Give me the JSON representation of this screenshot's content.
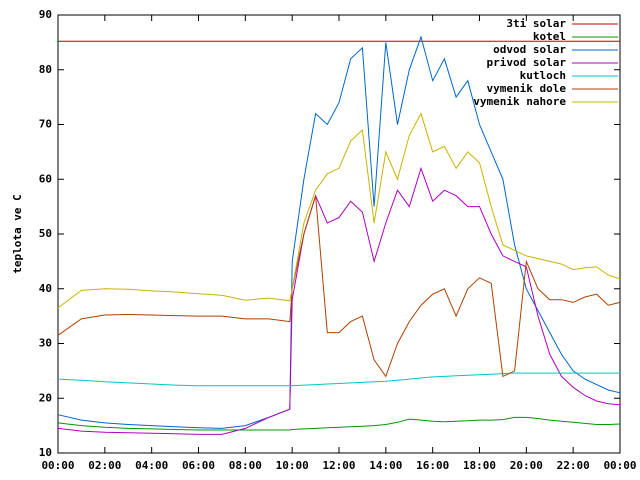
{
  "chart_data": {
    "type": "line",
    "y_label": "teplota ve C",
    "x": [
      0,
      1,
      2,
      3,
      4,
      5,
      6,
      7,
      8,
      9,
      9.9,
      10,
      10.5,
      11,
      11.5,
      12,
      12.5,
      13,
      13.5,
      14,
      14.5,
      15,
      15.5,
      16,
      16.5,
      17,
      17.5,
      18,
      18.5,
      19,
      19.5,
      20,
      20.5,
      21,
      21.5,
      22,
      22.5,
      23,
      23.5,
      24
    ],
    "xlim": [
      0,
      24
    ],
    "xticks": [
      {
        "value": 0,
        "label": "00:00"
      },
      {
        "value": 2,
        "label": "02:00"
      },
      {
        "value": 4,
        "label": "04:00"
      },
      {
        "value": 6,
        "label": "06:00"
      },
      {
        "value": 8,
        "label": "08:00"
      },
      {
        "value": 10,
        "label": "10:00"
      },
      {
        "value": 12,
        "label": "12:00"
      },
      {
        "value": 14,
        "label": "14:00"
      },
      {
        "value": 16,
        "label": "16:00"
      },
      {
        "value": 18,
        "label": "18:00"
      },
      {
        "value": 20,
        "label": "20:00"
      },
      {
        "value": 22,
        "label": "22:00"
      },
      {
        "value": 24,
        "label": "00:00"
      }
    ],
    "ylim": [
      10,
      90
    ],
    "yticks": [
      10,
      20,
      30,
      40,
      50,
      60,
      70,
      80,
      90
    ],
    "legend": "top-right",
    "series": [
      {
        "name": "3ti solar",
        "color": "#c00000",
        "values": [
          85.2,
          85.2,
          85.2,
          85.2,
          85.2,
          85.2,
          85.2,
          85.2,
          85.2,
          85.2,
          85.2,
          85.2,
          85.2,
          85.2,
          85.2,
          85.2,
          85.2,
          85.2,
          85.2,
          85.2,
          85.2,
          85.2,
          85.2,
          85.2,
          85.2,
          85.2,
          85.2,
          85.2,
          85.2,
          85.2,
          85.2,
          85.2,
          85.2,
          85.2,
          85.2,
          85.2,
          85.2,
          85.2,
          85.2,
          85.2
        ]
      },
      {
        "name": "kotel",
        "color": "#009900",
        "values": [
          15.5,
          15,
          14.7,
          14.5,
          14.4,
          14.3,
          14.2,
          14.2,
          14.2,
          14.2,
          14.2,
          14.3,
          14.4,
          14.5,
          14.6,
          14.7,
          14.8,
          14.9,
          15,
          15.2,
          15.6,
          16.2,
          16,
          15.8,
          15.7,
          15.8,
          15.9,
          16,
          16,
          16.1,
          16.5,
          16.5,
          16.3,
          16,
          15.8,
          15.6,
          15.4,
          15.2,
          15.2,
          15.3
        ]
      },
      {
        "name": "odvod solar",
        "color": "#0066cc",
        "values": [
          17,
          16,
          15.5,
          15.2,
          15,
          14.8,
          14.6,
          14.5,
          15,
          16.5,
          18,
          45,
          60,
          72,
          70,
          74,
          82,
          84,
          55,
          85,
          70,
          80,
          86,
          78,
          82,
          75,
          78,
          70,
          65,
          60,
          48,
          40,
          36,
          32,
          28,
          25,
          23.5,
          22.5,
          21.5,
          21
        ]
      },
      {
        "name": "privod solar",
        "color": "#b000c0",
        "values": [
          14.5,
          14,
          13.8,
          13.7,
          13.6,
          13.5,
          13.4,
          13.4,
          14.5,
          16.5,
          18,
          38,
          50,
          57,
          52,
          53,
          56,
          54,
          45,
          52,
          58,
          55,
          62,
          56,
          58,
          57,
          55,
          55,
          50,
          46,
          45,
          44,
          35,
          28,
          24,
          22,
          20.5,
          19.5,
          19,
          18.8
        ]
      },
      {
        "name": "kutloch",
        "color": "#00c8c8",
        "values": [
          23.5,
          23.3,
          23,
          22.8,
          22.6,
          22.4,
          22.3,
          22.3,
          22.3,
          22.3,
          22.3,
          22.3,
          22.4,
          22.5,
          22.6,
          22.7,
          22.8,
          22.9,
          23,
          23.1,
          23.3,
          23.5,
          23.7,
          23.9,
          24,
          24.1,
          24.2,
          24.3,
          24.4,
          24.5,
          24.6,
          24.6,
          24.6,
          24.6,
          24.6,
          24.6,
          24.6,
          24.6,
          24.6,
          24.6
        ]
      },
      {
        "name": "vymenik dole",
        "color": "#b04000",
        "values": [
          31.5,
          34.5,
          35.2,
          35.3,
          35.2,
          35.1,
          35,
          35,
          34.5,
          34.5,
          34,
          40,
          50,
          57,
          32,
          32,
          34,
          35,
          27,
          24,
          30,
          34,
          37,
          39,
          40,
          35,
          40,
          42,
          41,
          24,
          25,
          45,
          40,
          38,
          38,
          37.5,
          38.5,
          39,
          37,
          37.5
        ]
      },
      {
        "name": "vymenik nahore",
        "color": "#c8b400",
        "values": [
          36.5,
          39.7,
          40,
          39.9,
          39.6,
          39.4,
          39.1,
          38.8,
          37.9,
          38.3,
          37.8,
          40,
          52,
          58,
          61,
          62,
          67,
          69,
          52,
          65,
          60,
          68,
          72,
          65,
          66,
          62,
          65,
          63,
          55,
          48,
          47,
          46,
          45.5,
          45,
          44.5,
          43.5,
          43.8,
          44,
          42.5,
          41.8
        ]
      }
    ]
  }
}
